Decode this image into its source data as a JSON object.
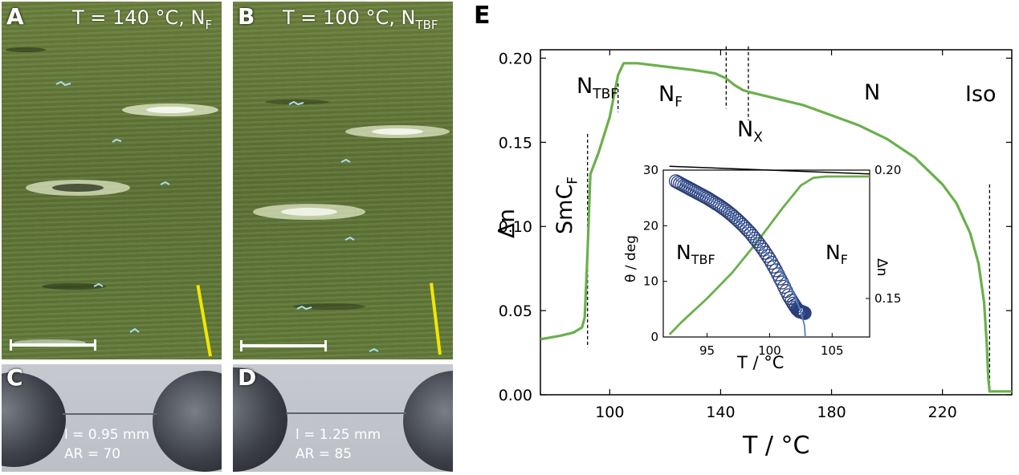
{
  "panels": {
    "A": {
      "label": "A",
      "condition_main": "T = 140 °C, N",
      "condition_sub": "F"
    },
    "B": {
      "label": "B",
      "condition_main": "T = 100 °C, N",
      "condition_sub": "TBF"
    },
    "C": {
      "label": "C",
      "length": "l = 0.95 mm",
      "aspect": "AR = 70"
    },
    "D": {
      "label": "D",
      "length": "l = 1.25 mm",
      "aspect": "AR = 85"
    },
    "E": {
      "label": "E"
    }
  },
  "colors": {
    "curve": "#6ab04c",
    "inset_circle": "#2a3f7a",
    "inset_line": "#5a7fc0"
  },
  "chart_data": [
    {
      "type": "line",
      "xlabel": "T / °C",
      "ylabel": "Δn",
      "xlim": [
        75,
        245
      ],
      "ylim": [
        0.0,
        0.205
      ],
      "x_ticks": [
        100,
        140,
        180,
        220
      ],
      "y_ticks": [
        "0.00",
        "0.05",
        "0.10",
        "0.15",
        "0.20"
      ],
      "phase_boundaries": [
        92,
        103,
        142,
        150,
        237
      ],
      "phase_labels": [
        {
          "main": "SmC",
          "sub": "F",
          "x": 85,
          "y": 0.115
        },
        {
          "main": "N",
          "sub": "TBF",
          "x": 97,
          "y": 0.175
        },
        {
          "main": "N",
          "sub": "F",
          "x": 125,
          "y": 0.175
        },
        {
          "main": "N",
          "sub": "X",
          "x": 147,
          "y": 0.155
        },
        {
          "main": "N",
          "sub": "",
          "x": 185,
          "y": 0.175
        },
        {
          "main": "Iso",
          "sub": "",
          "x": 229,
          "y": 0.175
        }
      ],
      "series": [
        {
          "x": [
            75,
            82,
            87,
            90,
            91,
            92,
            93,
            96,
            100,
            103,
            105,
            110,
            120,
            130,
            138,
            142,
            145,
            148,
            150,
            160,
            170,
            180,
            190,
            200,
            210,
            220,
            225,
            230,
            233,
            235,
            236,
            236.5,
            237,
            238,
            241,
            245
          ],
          "y": [
            0.033,
            0.035,
            0.037,
            0.04,
            0.046,
            0.085,
            0.131,
            0.144,
            0.165,
            0.19,
            0.197,
            0.197,
            0.195,
            0.193,
            0.191,
            0.188,
            0.184,
            0.181,
            0.18,
            0.176,
            0.172,
            0.166,
            0.16,
            0.152,
            0.141,
            0.125,
            0.114,
            0.096,
            0.078,
            0.055,
            0.03,
            0.01,
            0.002,
            0.002,
            0.002,
            0.002
          ]
        }
      ]
    },
    {
      "type": "scatter",
      "xlabel": "T / °C",
      "ylabel_left": "θ / deg",
      "ylabel_right": "Δn",
      "xlim": [
        91.5,
        108
      ],
      "ylim_left": [
        0,
        30
      ],
      "ylim_right": [
        0.135,
        0.2
      ],
      "x_ticks": [
        95,
        100,
        105
      ],
      "y_ticks_left": [
        0,
        10,
        20,
        30
      ],
      "y_ticks_right": [
        "0.15",
        "0.20"
      ],
      "labels": [
        {
          "main": "N",
          "sub": "TBF",
          "x": 94.5,
          "y": 14.5
        },
        {
          "main": "N",
          "sub": "F",
          "x": 104.3,
          "y": 14.5
        }
      ],
      "theta_points_x": [
        92.5,
        93.0,
        93.5,
        94.0,
        94.5,
        95.0,
        95.5,
        96.0,
        96.5,
        97.0,
        97.5,
        98.0,
        98.5,
        99.0,
        99.5,
        100.0,
        100.5,
        101.0,
        101.5,
        101.9,
        102.2,
        102.4,
        102.6,
        102.8
      ],
      "theta_points_y": [
        28.0,
        27.4,
        26.8,
        26.2,
        25.6,
        25.0,
        24.3,
        23.6,
        22.8,
        21.9,
        20.9,
        19.8,
        18.6,
        17.2,
        15.7,
        14.0,
        12.0,
        9.8,
        7.5,
        6.0,
        5.0,
        4.6,
        4.5,
        4.3
      ],
      "fit_line_x": [
        92.5,
        94,
        96,
        98,
        100,
        101,
        102,
        102.5,
        102.8,
        102.85
      ],
      "fit_line_y": [
        28.3,
        26.5,
        23.8,
        20.0,
        14.5,
        11.5,
        7.5,
        4.5,
        2.0,
        0
      ],
      "dn_x": [
        92,
        93,
        95,
        97,
        99,
        101,
        102.5,
        103.5,
        104.5,
        108
      ],
      "dn_y": [
        0.136,
        0.141,
        0.15,
        0.16,
        0.172,
        0.185,
        0.194,
        0.197,
        0.1975,
        0.1975
      ],
      "ref_line_x": [
        92,
        108
      ],
      "ref_line_y": [
        0.2015,
        0.1985
      ]
    }
  ]
}
